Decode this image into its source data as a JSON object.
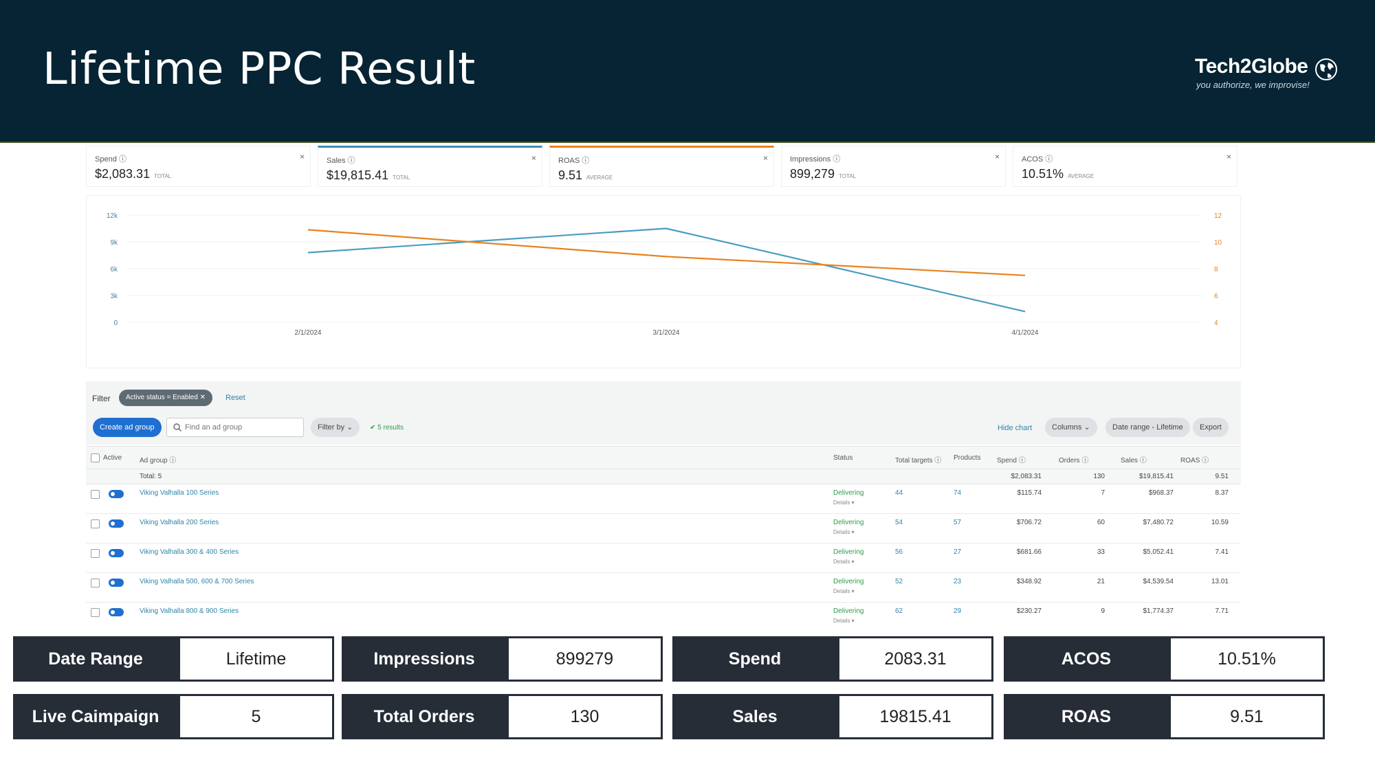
{
  "header": {
    "title": "Lifetime PPC Result"
  },
  "logo": {
    "brand": "Tech2Globe",
    "tagline": "you authorize, we improvise!"
  },
  "metrics": [
    {
      "label": "Spend",
      "value": "$2,083.31",
      "sub": "TOTAL",
      "close": "×"
    },
    {
      "label": "Sales",
      "value": "$19,815.41",
      "sub": "TOTAL",
      "close": "×"
    },
    {
      "label": "ROAS",
      "value": "9.51",
      "sub": "AVERAGE",
      "close": "×"
    },
    {
      "label": "Impressions",
      "value": "899,279",
      "sub": "TOTAL",
      "close": "×"
    },
    {
      "label": "ACOS",
      "value": "10.51%",
      "sub": "AVERAGE",
      "close": "×"
    }
  ],
  "chart_data": {
    "type": "line",
    "x": [
      "2/1/2024",
      "3/1/2024",
      "4/1/2024"
    ],
    "y_left_ticks": [
      "0",
      "3k",
      "6k",
      "9k",
      "12k"
    ],
    "y_right_ticks": [
      "4",
      "6",
      "8",
      "10",
      "12"
    ],
    "ylim_left": [
      0,
      12000
    ],
    "ylim_right": [
      4,
      12
    ],
    "series": [
      {
        "values": [
          7800,
          10500,
          1200
        ],
        "axis": "left",
        "color": "#4a9cc0"
      },
      {
        "values": [
          10.9,
          8.9,
          7.5
        ],
        "axis": "right",
        "color": "#e8821e"
      }
    ],
    "grid": true
  },
  "filter": {
    "label": "Filter",
    "chip": "Active status = Enabled ✕",
    "reset": "Reset"
  },
  "toolbar": {
    "create": "Create ad group",
    "search_placeholder": "Find an ad group",
    "filter_by": "Filter by ⌄",
    "results": "✔ 5 results",
    "hide_chart": "Hide chart",
    "columns": "Columns ⌄",
    "date_range": "Date range - Lifetime",
    "export": "Export"
  },
  "table": {
    "headers": [
      "Active",
      "Ad group",
      "Status",
      "Total targets",
      "Products",
      "Spend",
      "Orders",
      "Sales",
      "ROAS"
    ],
    "total": {
      "label": "Total: 5",
      "spend": "$2,083.31",
      "orders": "130",
      "sales": "$19,815.41",
      "roas": "9.51"
    },
    "rows": [
      {
        "name": "Viking Valhalla 100 Series",
        "status": "Delivering",
        "details": "Details ▾",
        "targets": "44",
        "products": "74",
        "spend": "$115.74",
        "orders": "7",
        "sales": "$968.37",
        "roas": "8.37"
      },
      {
        "name": "Viking Valhalla 200 Series",
        "status": "Delivering",
        "details": "Details ▾",
        "targets": "54",
        "products": "57",
        "spend": "$706.72",
        "orders": "60",
        "sales": "$7,480.72",
        "roas": "10.59"
      },
      {
        "name": "Viking Valhalla 300 & 400 Series",
        "status": "Delivering",
        "details": "Details ▾",
        "targets": "56",
        "products": "27",
        "spend": "$681.66",
        "orders": "33",
        "sales": "$5,052.41",
        "roas": "7.41"
      },
      {
        "name": "Viking Valhalla 500, 600 & 700 Series",
        "status": "Delivering",
        "details": "Details ▾",
        "targets": "52",
        "products": "23",
        "spend": "$348.92",
        "orders": "21",
        "sales": "$4,539.54",
        "roas": "13.01"
      },
      {
        "name": "Viking Valhalla 800 & 900 Series",
        "status": "Delivering",
        "details": "Details ▾",
        "targets": "62",
        "products": "29",
        "spend": "$230.27",
        "orders": "9",
        "sales": "$1,774.37",
        "roas": "7.71"
      }
    ]
  },
  "kpis": [
    {
      "label": "Date Range",
      "value": "Lifetime"
    },
    {
      "label": "Impressions",
      "value": "899279"
    },
    {
      "label": "Spend",
      "value": "2083.31"
    },
    {
      "label": "ACOS",
      "value": "10.51%"
    },
    {
      "label": "Live Caimpaign",
      "value": "5"
    },
    {
      "label": "Total Orders",
      "value": "130"
    },
    {
      "label": "Sales",
      "value": "19815.41"
    },
    {
      "label": "ROAS",
      "value": "9.51"
    }
  ]
}
